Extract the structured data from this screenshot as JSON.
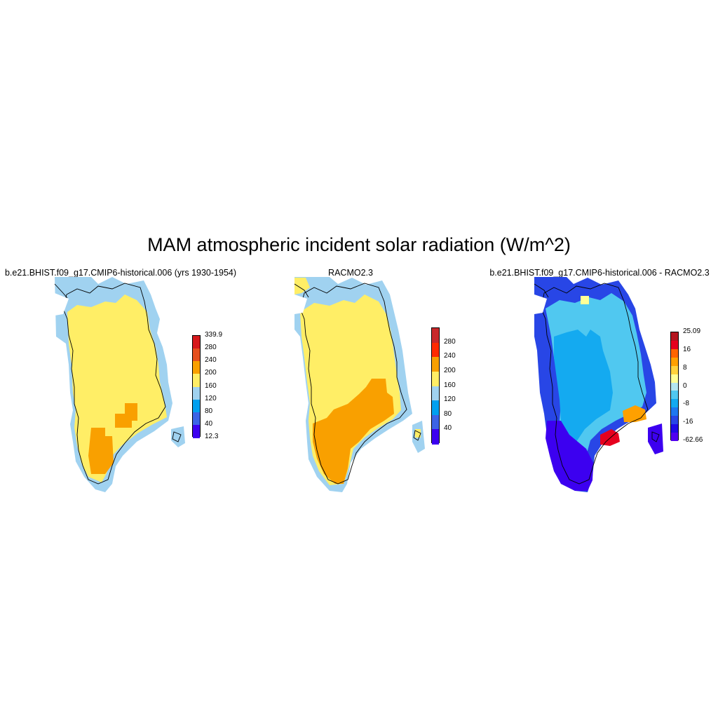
{
  "title": "MAM atmospheric incident solar radiation (W/m^2)",
  "panels": [
    {
      "title": "b.e21.BHIST.f09_g17.CMIP6-historical.006 (yrs 1930-1954)",
      "colorbar": {
        "labels": [
          "339.9",
          "280",
          "240",
          "200",
          "160",
          "120",
          "80",
          "40",
          "12.3"
        ],
        "colors": [
          "#d7191c",
          "#e6501e",
          "#f9a000",
          "#ffee66",
          "#a0d2f0",
          "#00a0f0",
          "#3c64e6",
          "#3c00f0"
        ]
      }
    },
    {
      "title": "RACMO2.3",
      "colorbar": {
        "labels": [
          "280",
          "240",
          "200",
          "160",
          "120",
          "80",
          "40"
        ],
        "colors": [
          "#c8282a",
          "#ff2a00",
          "#f9a000",
          "#ffee66",
          "#a0d2f0",
          "#00a0f0",
          "#3c64e6",
          "#3c00f0"
        ]
      }
    },
    {
      "title": "b.e21.BHIST.f09_g17.CMIP6-historical.006 - RACMO2.3",
      "colorbar": {
        "labels": [
          "25.09",
          "16",
          "8",
          "0",
          "-8",
          "-16",
          "-62.66"
        ],
        "colors": [
          "#b4141e",
          "#e6001e",
          "#ff6400",
          "#ffa000",
          "#ffd23c",
          "#ffff96",
          "#b4e6f0",
          "#50c8f0",
          "#14aaf0",
          "#1e78f0",
          "#2846e6",
          "#1e0ae6",
          "#5000f0"
        ]
      }
    }
  ]
}
